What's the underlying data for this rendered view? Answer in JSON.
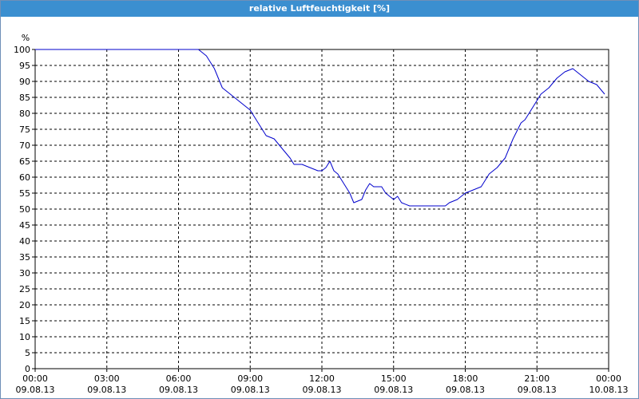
{
  "window": {
    "title": "relative Luftfeuchtigkeit [%]"
  },
  "colors": {
    "title_bar": "#3b8fd0",
    "line": "#0000cc",
    "grid": "#000000"
  },
  "chart_data": {
    "type": "line",
    "title": "relative Luftfeuchtigkeit [%]",
    "ylabel": "%",
    "xlabel": "",
    "ylim": [
      0,
      100
    ],
    "y_ticks": [
      0,
      5,
      10,
      15,
      20,
      25,
      30,
      35,
      40,
      45,
      50,
      55,
      60,
      65,
      70,
      75,
      80,
      85,
      90,
      95,
      100
    ],
    "xlim": [
      "09.08.13 00:00",
      "10.08.13 00:00"
    ],
    "x_ticks": [
      {
        "time": "00:00",
        "date": "09.08.13"
      },
      {
        "time": "03:00",
        "date": "09.08.13"
      },
      {
        "time": "06:00",
        "date": "09.08.13"
      },
      {
        "time": "09:00",
        "date": "09.08.13"
      },
      {
        "time": "12:00",
        "date": "09.08.13"
      },
      {
        "time": "15:00",
        "date": "09.08.13"
      },
      {
        "time": "18:00",
        "date": "09.08.13"
      },
      {
        "time": "21:00",
        "date": "09.08.13"
      },
      {
        "time": "00:00",
        "date": "10.08.13"
      }
    ],
    "grid": true,
    "series": [
      {
        "x": [
          "09.08.13 00:00",
          "09.08.13 06:00",
          "09.08.13 06:50",
          "09.08.13 07:10",
          "09.08.13 07:30",
          "09.08.13 07:50",
          "09.08.13 08:10",
          "09.08.13 08:30",
          "09.08.13 08:50",
          "09.08.13 09:00",
          "09.08.13 09:10",
          "09.08.13 09:20",
          "09.08.13 09:40",
          "09.08.13 10:00",
          "09.08.13 10:20",
          "09.08.13 10:40",
          "09.08.13 10:50",
          "09.08.13 11:00",
          "09.08.13 11:10",
          "09.08.13 11:30",
          "09.08.13 11:50",
          "09.08.13 12:00",
          "09.08.13 12:10",
          "09.08.13 12:20",
          "09.08.13 12:30",
          "09.08.13 12:40",
          "09.08.13 12:50",
          "09.08.13 13:10",
          "09.08.13 13:20",
          "09.08.13 13:40",
          "09.08.13 13:50",
          "09.08.13 14:00",
          "09.08.13 14:10",
          "09.08.13 14:30",
          "09.08.13 14:40",
          "09.08.13 14:50",
          "09.08.13 15:00",
          "09.08.13 15:10",
          "09.08.13 15:20",
          "09.08.13 15:40",
          "09.08.13 16:00",
          "09.08.13 16:20",
          "09.08.13 16:40",
          "09.08.13 17:00",
          "09.08.13 17:10",
          "09.08.13 17:20",
          "09.08.13 17:40",
          "09.08.13 18:00",
          "09.08.13 18:20",
          "09.08.13 18:40",
          "09.08.13 19:00",
          "09.08.13 19:10",
          "09.08.13 19:20",
          "09.08.13 19:40",
          "09.08.13 20:00",
          "09.08.13 20:20",
          "09.08.13 20:30",
          "09.08.13 20:50",
          "09.08.13 21:10",
          "09.08.13 21:30",
          "09.08.13 21:50",
          "09.08.13 22:10",
          "09.08.13 22:30",
          "09.08.13 22:50",
          "09.08.13 23:00",
          "09.08.13 23:10",
          "09.08.13 23:30",
          "09.08.13 23:50"
        ],
        "y": [
          100,
          100,
          100,
          98,
          94,
          88,
          86,
          84,
          82,
          81,
          79,
          77,
          73,
          72,
          69,
          66,
          64,
          64,
          64,
          63,
          62,
          62,
          63,
          65,
          62,
          61,
          59,
          55,
          52,
          53,
          56,
          58,
          57,
          57,
          55,
          54,
          53,
          54,
          52,
          51,
          51,
          51,
          51,
          51,
          51,
          52,
          53,
          55,
          56,
          57,
          61,
          62,
          63,
          66,
          72,
          77,
          78,
          82,
          86,
          88,
          91,
          93,
          94,
          92,
          91,
          90,
          89,
          86
        ]
      }
    ]
  }
}
